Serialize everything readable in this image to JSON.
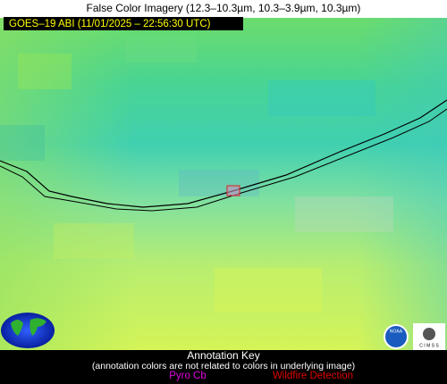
{
  "header": {
    "title": "False Color Imagery (12.3–10.3µm, 10.3–3.9µm, 10.3µm)"
  },
  "image": {
    "label": "GOES–19 ABI (11/01/2025 – 22:56:30 UTC)"
  },
  "logos": {
    "noaa": "NOAA",
    "cimss": "C I M S S"
  },
  "annotation_key": {
    "title": "Annotation Key",
    "note": "(annotation colors are not related to colors in underlying image)",
    "items": [
      {
        "label": "Pyro Cb",
        "color": "#e000e0"
      },
      {
        "label": "Wildfire Detection",
        "color": "#e00000"
      }
    ]
  }
}
